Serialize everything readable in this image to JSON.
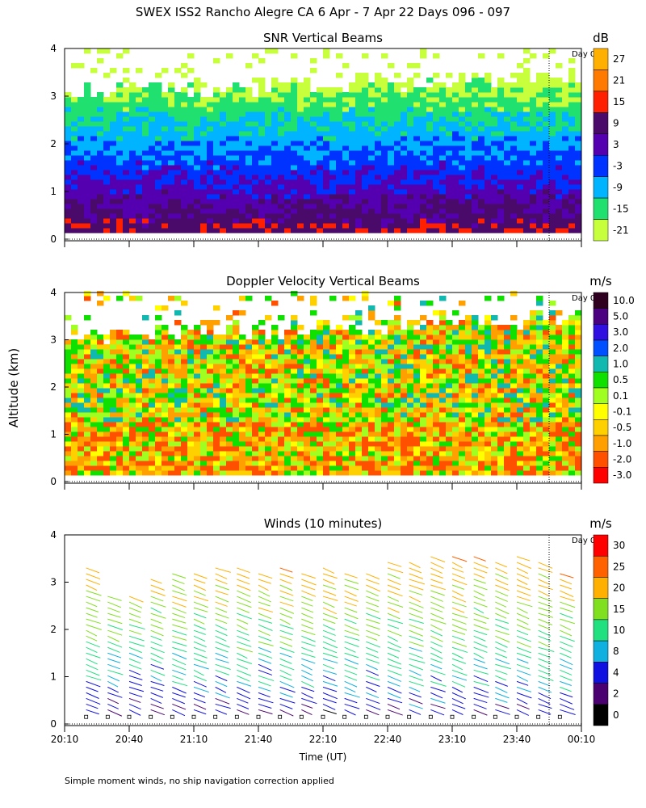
{
  "figure": {
    "title": "SWEX ISS2 Rancho Alegre CA   6 Apr -  7 Apr 22 Days 096 - 097",
    "ylabel": "Altitude (km)",
    "xlabel": "Time (UT)",
    "footnote": "Simple moment winds, no ship navigation correction applied",
    "day_marker_label": "Day 0",
    "x_ticks": [
      "20:10",
      "20:40",
      "21:10",
      "21:40",
      "22:10",
      "22:40",
      "23:10",
      "23:40",
      "00:10"
    ],
    "y_ticks": [
      "0",
      "1",
      "2",
      "3",
      "4"
    ]
  },
  "chart_data": [
    {
      "type": "heatmap",
      "title": "SNR Vertical Beams",
      "unit": "dB",
      "xlabel": "Time (UT)",
      "ylabel": "Altitude (km)",
      "xlim": [
        "20:10",
        "00:10"
      ],
      "ylim": [
        0,
        4
      ],
      "day_marker_time": "23:55",
      "colorbar": {
        "labels": [
          "27",
          "21",
          "15",
          "9",
          "3",
          "-3",
          "-9",
          "-15",
          "-21"
        ],
        "colors": [
          "#ffb000",
          "#ff7a00",
          "#ff2000",
          "#4a0a6a",
          "#5500b0",
          "#0033ff",
          "#00b4ff",
          "#20e070",
          "#c8ff3c"
        ]
      }
    },
    {
      "type": "heatmap",
      "title": "Doppler Velocity Vertical Beams",
      "unit": "m/s",
      "xlabel": "Time (UT)",
      "ylabel": "Altitude (km)",
      "xlim": [
        "20:10",
        "00:10"
      ],
      "ylim": [
        0,
        4
      ],
      "day_marker_time": "23:55",
      "colorbar": {
        "labels": [
          "10.0",
          "5.0",
          "3.0",
          "2.0",
          "1.0",
          "0.5",
          "0.1",
          "-0.1",
          "-0.5",
          "-1.0",
          "-2.0",
          "-3.0"
        ],
        "colors": [
          "#300020",
          "#4a0080",
          "#3010e0",
          "#0050ff",
          "#10b8b0",
          "#10e000",
          "#a0ff20",
          "#ffff00",
          "#ffd000",
          "#ffa000",
          "#ff5000",
          "#ff0000"
        ]
      }
    },
    {
      "type": "scatter",
      "title": "Winds (10 minutes)",
      "unit": "m/s",
      "xlabel": "Time (UT)",
      "ylabel": "Altitude (km)",
      "xlim": [
        "20:10",
        "00:10"
      ],
      "ylim": [
        0,
        4
      ],
      "day_marker_time": "23:55",
      "colorbar": {
        "labels": [
          "30",
          "25",
          "20",
          "15",
          "10",
          "8",
          "4",
          "2",
          "0"
        ],
        "colors": [
          "#ff0000",
          "#ff6000",
          "#ffb000",
          "#80e020",
          "#20e080",
          "#10b0e0",
          "#1010e0",
          "#4a0070",
          "#000000"
        ]
      },
      "x": [
        "20:20",
        "20:30",
        "20:40",
        "20:50",
        "21:00",
        "21:10",
        "21:20",
        "21:30",
        "21:40",
        "21:50",
        "22:00",
        "22:10",
        "22:20",
        "22:30",
        "22:40",
        "22:50",
        "23:00",
        "23:10",
        "23:20",
        "23:30",
        "23:40",
        "23:50",
        "00:00"
      ],
      "top_km": [
        3.4,
        2.8,
        2.8,
        3.1,
        3.2,
        3.3,
        3.4,
        3.4,
        3.3,
        3.4,
        3.3,
        3.4,
        3.3,
        3.3,
        3.5,
        3.5,
        3.6,
        3.6,
        3.6,
        3.5,
        3.6,
        3.5,
        3.2
      ]
    }
  ]
}
